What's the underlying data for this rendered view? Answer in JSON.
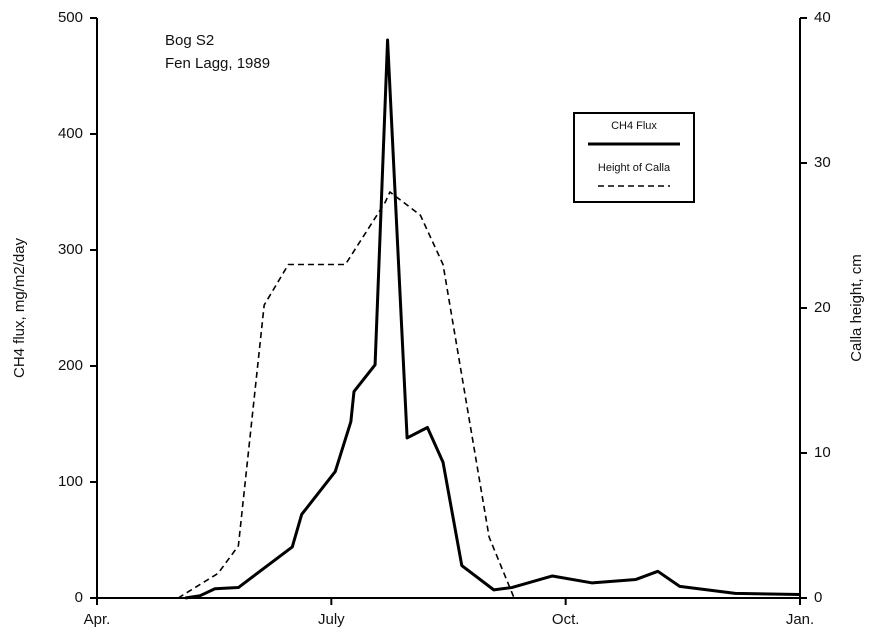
{
  "chart_data": {
    "type": "line",
    "annotations": [
      "Bog S2",
      "Fen Lagg, 1989"
    ],
    "y_label": "CH4 flux, mg/m2/day",
    "y2_label": "Calla height, cm",
    "xlim": [
      0,
      9
    ],
    "xticks": [
      {
        "value": 0,
        "label": "Apr."
      },
      {
        "value": 3,
        "label": "July"
      },
      {
        "value": 6,
        "label": "Oct."
      },
      {
        "value": 9,
        "label": "Jan."
      }
    ],
    "ylim": [
      0,
      500
    ],
    "yticks": [
      0,
      100,
      200,
      300,
      400,
      500
    ],
    "y2lim": [
      0,
      40
    ],
    "y2ticks": [
      0,
      10,
      20,
      30,
      40
    ],
    "legend": "upper right",
    "series": [
      {
        "name": "CH4 Flux",
        "color": "#000000",
        "style": "solid",
        "x": [
          1.13,
          1.32,
          1.51,
          1.81,
          2.5,
          2.62,
          3.05,
          3.25,
          3.29,
          3.56,
          3.72,
          3.97,
          4.23,
          4.43,
          4.67,
          5.08,
          5.31,
          5.83,
          6.34,
          6.9,
          7.18,
          7.46,
          8.17,
          9.0
        ],
        "values": [
          0,
          2,
          8,
          9,
          44,
          72,
          109,
          152,
          178,
          201,
          481,
          138,
          147,
          117,
          28,
          7,
          9,
          19,
          13,
          16,
          23,
          10,
          4,
          3
        ]
      },
      {
        "name": "Height of Calla",
        "color": "#000000",
        "style": "dashed",
        "axis": "y2",
        "x": [
          1.04,
          1.55,
          1.81,
          2.14,
          2.45,
          3.18,
          3.69,
          3.75,
          4.14,
          4.43,
          5.02,
          5.34
        ],
        "values": [
          0,
          1.7,
          3.6,
          20.2,
          23,
          23,
          27.3,
          28,
          26.4,
          23,
          4.2,
          0
        ]
      }
    ]
  }
}
